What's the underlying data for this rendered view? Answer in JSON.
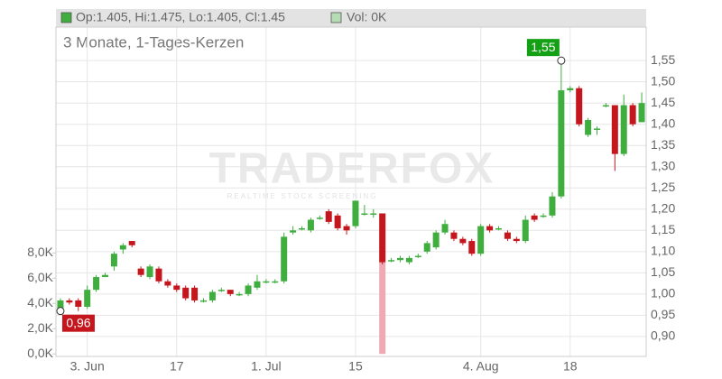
{
  "chart_data": {
    "type": "candlestick",
    "legend_price": "Op:1.405, Hi:1.475, Lo:1.405, Cl:1.45",
    "legend_volume": "Vol: 0K",
    "subtitle": "3 Monate, 1-Tages-Kerzen",
    "watermark": "TRADERFOX",
    "watermark_sub": "REALTIME STOCK SCREENING",
    "categories": [
      null,
      null,
      null,
      "3. Jun",
      null,
      null,
      null,
      null,
      null,
      null,
      null,
      null,
      null,
      "17",
      null,
      null,
      null,
      null,
      null,
      null,
      null,
      null,
      null,
      "1. Jul",
      null,
      null,
      null,
      null,
      null,
      null,
      null,
      null,
      null,
      "15",
      null,
      null,
      null,
      null,
      null,
      null,
      null,
      null,
      null,
      null,
      null,
      null,
      null,
      "4. Aug",
      null,
      null,
      null,
      null,
      null,
      null,
      null,
      null,
      null,
      "18",
      null,
      null,
      null,
      null,
      null,
      null,
      null,
      null
    ],
    "open": [
      0.965,
      0.985,
      0.985,
      0.97,
      1.01,
      1.04,
      1.065,
      1.105,
      1.125,
      1.06,
      1.04,
      1.06,
      1.03,
      1.02,
      1.015,
      1.015,
      0.985,
      0.985,
      1.01,
      1.01,
      1.0,
      1.0,
      1.015,
      1.03,
      1.03,
      1.03,
      1.145,
      1.155,
      1.15,
      1.18,
      1.195,
      1.185,
      1.16,
      1.16,
      1.19,
      1.19,
      1.19,
      1.08,
      1.08,
      1.075,
      1.09,
      1.1,
      1.11,
      1.145,
      1.145,
      1.13,
      1.125,
      1.095,
      1.16,
      1.155,
      1.145,
      1.13,
      1.125,
      1.185,
      1.185,
      1.185,
      1.23,
      1.48,
      1.485,
      1.375,
      1.39,
      1.445,
      1.445,
      1.33,
      1.445,
      1.405
    ],
    "high": [
      0.99,
      0.99,
      0.99,
      1.02,
      1.045,
      1.05,
      1.1,
      1.12,
      1.125,
      1.065,
      1.07,
      1.065,
      1.035,
      1.025,
      1.02,
      1.02,
      0.99,
      1.01,
      1.015,
      1.01,
      1.005,
      1.025,
      1.045,
      1.035,
      1.035,
      1.145,
      1.16,
      1.16,
      1.18,
      1.185,
      1.2,
      1.19,
      1.165,
      1.22,
      1.21,
      1.2,
      1.19,
      1.085,
      1.09,
      1.09,
      1.095,
      1.125,
      1.15,
      1.175,
      1.15,
      1.135,
      1.13,
      1.165,
      1.165,
      1.16,
      1.15,
      1.135,
      1.185,
      1.19,
      1.19,
      1.24,
      1.55,
      1.49,
      1.49,
      1.415,
      1.395,
      1.45,
      1.445,
      1.47,
      1.45,
      1.475
    ],
    "low": [
      0.96,
      0.975,
      0.96,
      0.965,
      1.005,
      1.04,
      1.055,
      1.095,
      1.11,
      1.04,
      1.035,
      1.025,
      1.015,
      1.005,
      0.985,
      0.98,
      0.98,
      0.98,
      1.005,
      0.995,
      0.995,
      0.995,
      1.01,
      1.025,
      1.025,
      1.025,
      1.14,
      1.15,
      1.145,
      1.175,
      1.165,
      1.15,
      1.14,
      1.155,
      1.185,
      1.18,
      1.07,
      1.075,
      1.075,
      1.07,
      1.085,
      1.095,
      1.105,
      1.14,
      1.125,
      1.115,
      1.09,
      1.09,
      1.145,
      1.15,
      1.125,
      1.12,
      1.12,
      1.17,
      1.18,
      1.18,
      1.225,
      1.475,
      1.395,
      1.37,
      1.375,
      1.44,
      1.29,
      1.325,
      1.395,
      1.405
    ],
    "close": [
      0.985,
      0.98,
      0.97,
      1.01,
      1.04,
      1.045,
      1.095,
      1.115,
      1.115,
      1.045,
      1.065,
      1.03,
      1.02,
      1.01,
      0.99,
      0.985,
      0.985,
      1.005,
      1.01,
      1.0,
      1.0,
      1.02,
      1.03,
      1.03,
      1.03,
      1.135,
      1.15,
      1.155,
      1.175,
      1.18,
      1.17,
      1.155,
      1.15,
      1.22,
      1.19,
      1.19,
      1.075,
      1.08,
      1.085,
      1.085,
      1.09,
      1.12,
      1.145,
      1.165,
      1.13,
      1.12,
      1.095,
      1.16,
      1.15,
      1.155,
      1.13,
      1.125,
      1.175,
      1.175,
      1.185,
      1.23,
      1.48,
      1.485,
      1.4,
      1.41,
      1.39,
      1.445,
      1.33,
      1.445,
      1.4,
      1.45
    ],
    "volume": [
      0,
      0,
      0,
      0,
      0,
      0,
      0,
      0,
      0,
      0,
      0,
      0,
      0,
      0,
      0,
      0,
      0,
      0,
      0,
      0,
      0,
      0,
      0,
      0,
      0,
      0,
      0,
      0,
      0,
      0,
      0,
      0,
      0,
      0,
      0,
      0,
      7300,
      0,
      0,
      0,
      0,
      0,
      0,
      0,
      0,
      0,
      0,
      0,
      0,
      0,
      0,
      0,
      0,
      0,
      0,
      0,
      0,
      0,
      0,
      0,
      0,
      0,
      0,
      0,
      0,
      0
    ],
    "up_color": "#3fae3f",
    "down_color": "#c4161c",
    "volume_color": "#f0a9b3",
    "max_label": {
      "value": 1.55,
      "label": "1,55",
      "color": "#14a014"
    },
    "min_label": {
      "value": 0.96,
      "label": "0,96",
      "color": "#c4161c"
    },
    "ylim": [
      0.853,
      1.629
    ],
    "yticks": [
      {
        "value": 0.9,
        "label": "0,90"
      },
      {
        "value": 0.95,
        "label": "0,95"
      },
      {
        "value": 1.0,
        "label": "1,00"
      },
      {
        "value": 1.05,
        "label": "1,05"
      },
      {
        "value": 1.1,
        "label": "1,10"
      },
      {
        "value": 1.15,
        "label": "1,15"
      },
      {
        "value": 1.2,
        "label": "1,20"
      },
      {
        "value": 1.25,
        "label": "1,25"
      },
      {
        "value": 1.3,
        "label": "1,30"
      },
      {
        "value": 1.35,
        "label": "1,35"
      },
      {
        "value": 1.4,
        "label": "1,40"
      },
      {
        "value": 1.45,
        "label": "1,45"
      },
      {
        "value": 1.5,
        "label": "1,50"
      },
      {
        "value": 1.55,
        "label": "1,55"
      }
    ],
    "y2lim": [
      -200,
      25900
    ],
    "y2ticks": [
      {
        "value": 0,
        "label": "0,0K"
      },
      {
        "value": 2000,
        "label": "2,0K"
      },
      {
        "value": 4000,
        "label": "4,0K"
      },
      {
        "value": 6000,
        "label": "6,0K"
      },
      {
        "value": 8000,
        "label": "8,0K"
      }
    ],
    "grid": true
  }
}
